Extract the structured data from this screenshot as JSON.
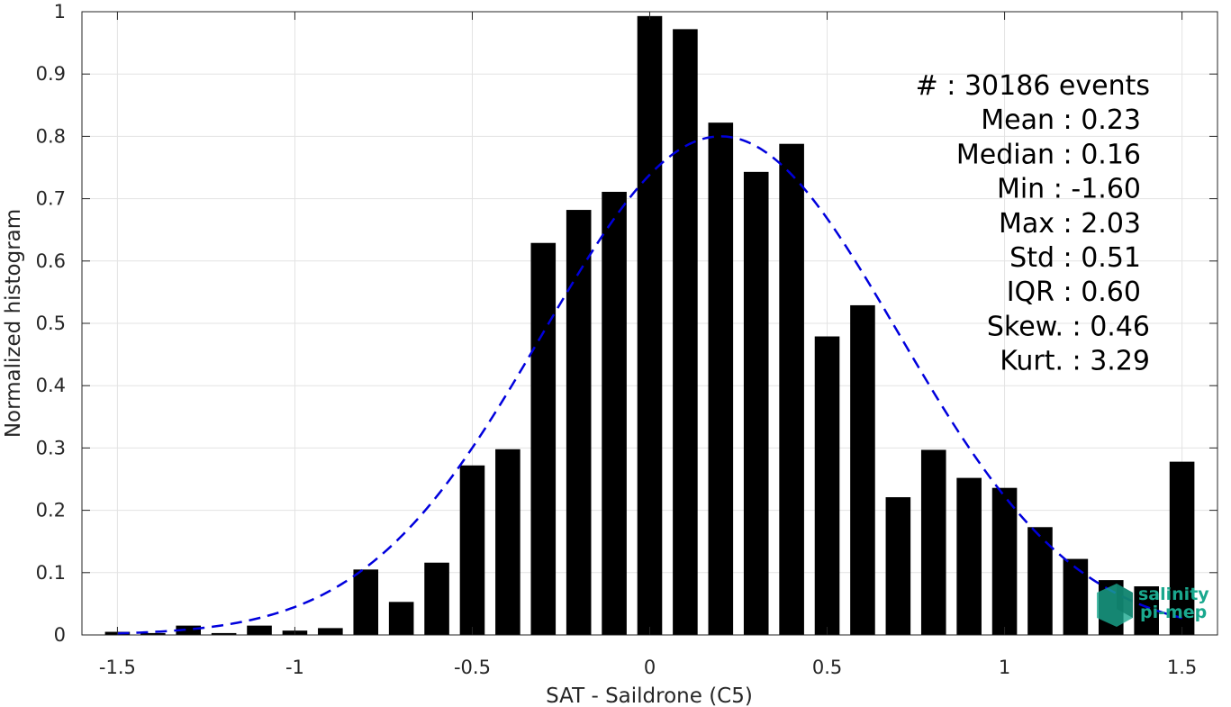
{
  "chart_data": {
    "type": "bar",
    "xlabel": "SAT - Saildrone (C5)",
    "ylabel": "Normalized histogram",
    "xlim": [
      -1.6,
      1.6
    ],
    "ylim": [
      0,
      1
    ],
    "grid": true,
    "bar_width": 0.07,
    "x_ticks": [
      -1.5,
      -1,
      -0.5,
      0,
      0.5,
      1,
      1.5
    ],
    "x_tick_labels": [
      "-1.5",
      "-1",
      "-0.5",
      "0",
      "0.5",
      "1",
      "1.5"
    ],
    "y_ticks": [
      0,
      0.1,
      0.2,
      0.3,
      0.4,
      0.5,
      0.6,
      0.7,
      0.8,
      0.9,
      1
    ],
    "y_tick_labels": [
      "0",
      "0.1",
      "0.2",
      "0.3",
      "0.4",
      "0.5",
      "0.6",
      "0.7",
      "0.8",
      "0.9",
      "1"
    ],
    "bins": [
      -1.5,
      -1.4,
      -1.3,
      -1.2,
      -1.1,
      -1.0,
      -0.9,
      -0.8,
      -0.7,
      -0.6,
      -0.5,
      -0.4,
      -0.3,
      -0.2,
      -0.1,
      0.0,
      0.1,
      0.2,
      0.3,
      0.4,
      0.5,
      0.6,
      0.7,
      0.8,
      0.9,
      1.0,
      1.1,
      1.2,
      1.3,
      1.4,
      1.5
    ],
    "values": [
      0.005,
      0.003,
      0.015,
      0.003,
      0.015,
      0.007,
      0.011,
      0.105,
      0.053,
      0.116,
      0.272,
      0.298,
      0.629,
      0.682,
      0.711,
      0.993,
      0.972,
      0.822,
      0.743,
      0.788,
      0.479,
      0.529,
      0.221,
      0.297,
      0.252,
      0.236,
      0.173,
      0.122,
      0.088,
      0.078,
      0.278
    ],
    "bar_color": "#000000",
    "fit": {
      "type": "normal",
      "mean": 0.2,
      "std": 0.5,
      "peak": 0.8,
      "color": "#0000dd",
      "style": "dashed"
    }
  },
  "stats": [
    {
      "label": "#  : 30186 events",
      "dx": 10
    },
    {
      "label": "Mean : 0.23",
      "dx": 0
    },
    {
      "label": "Median : 0.16",
      "dx": 0
    },
    {
      "label": "Min : -1.60",
      "dx": 0
    },
    {
      "label": "Max : 2.03",
      "dx": 0
    },
    {
      "label": "Std : 0.51",
      "dx": 0
    },
    {
      "label": "IQR : 0.60",
      "dx": 0
    },
    {
      "label": "Skew. : 0.46",
      "dx": 10
    },
    {
      "label": "Kurt. : 3.29",
      "dx": 10
    }
  ],
  "logo": {
    "line1": "salinity",
    "line2": "pi-mep",
    "color": "#1aa88e"
  }
}
